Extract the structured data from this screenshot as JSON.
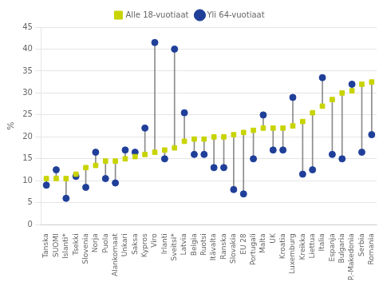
{
  "chart_data": {
    "type": "dumbbell",
    "categories": [
      "Tanska",
      "SUOMI",
      "Islanti*",
      "Tsekki",
      "Slovenia",
      "Norja",
      "Puola",
      "Alankomaat",
      "Unkari",
      "Saksa",
      "Kypros",
      "Viro",
      "Irlanti",
      "Sveitsi*",
      "Latvia",
      "Belgia",
      "Ruotsi",
      "Itävalta",
      "Ranska",
      "Slovakia",
      "EU 28",
      "Portugali",
      "Malta",
      "UK",
      "Kroatia",
      "Luxemburg",
      "Kreikka",
      "Liettua",
      "Italia",
      "Espanja",
      "Bulgaria",
      "P.-Makedonia",
      "Serbia",
      "Romania"
    ],
    "series": [
      {
        "name": "Alle 18-vuotiaat",
        "color": "#c8d400",
        "marker": "square",
        "values": [
          10.5,
          10.5,
          10.5,
          11.5,
          13.0,
          13.5,
          14.5,
          14.5,
          15.0,
          15.5,
          16.0,
          16.5,
          17.0,
          17.5,
          19.0,
          19.5,
          19.5,
          20.0,
          20.0,
          20.5,
          21.0,
          21.5,
          22.0,
          22.0,
          22.0,
          22.5,
          23.5,
          25.5,
          27.0,
          28.5,
          30.0,
          30.5,
          32.0,
          32.5
        ]
      },
      {
        "name": "Yli 64-vuotiaat",
        "color": "#1f3f99",
        "marker": "circle",
        "values": [
          9.0,
          12.5,
          6.0,
          11.0,
          8.5,
          16.5,
          10.5,
          9.5,
          17.0,
          16.5,
          22.0,
          41.5,
          15.0,
          40.0,
          25.5,
          16.0,
          16.0,
          13.0,
          13.0,
          8.0,
          7.0,
          15.0,
          25.0,
          17.0,
          17.0,
          29.0,
          11.5,
          12.5,
          33.5,
          16.0,
          15.0,
          32.0,
          16.5,
          20.5
        ]
      }
    ],
    "ylabel": "%",
    "ylim": [
      0,
      45
    ],
    "yticks": [
      0,
      5,
      10,
      15,
      20,
      25,
      30,
      35,
      40,
      45
    ],
    "grid": true,
    "legend": "top"
  }
}
